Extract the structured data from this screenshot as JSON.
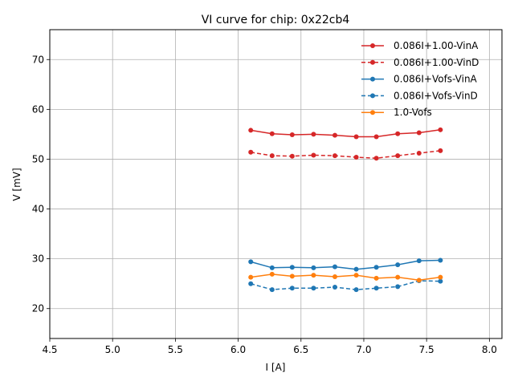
{
  "chart_data": {
    "type": "line",
    "title": "VI curve for chip: 0x22cb4",
    "xlabel": "I [A]",
    "ylabel": "V [mV]",
    "xlim": [
      4.5,
      8.1
    ],
    "ylim": [
      14,
      76
    ],
    "xticks": [
      "4.5",
      "5.0",
      "5.5",
      "6.0",
      "6.5",
      "7.0",
      "7.5",
      "8.0"
    ],
    "yticks": [
      "20",
      "30",
      "40",
      "50",
      "60",
      "70"
    ],
    "grid": true,
    "legend_position": "top-right",
    "x": [
      6.1,
      6.27,
      6.43,
      6.6,
      6.77,
      6.94,
      7.1,
      7.27,
      7.44,
      7.61
    ],
    "series": [
      {
        "name": "0.086I+1.00-VinA",
        "color": "#d62728",
        "style": "solid",
        "values": [
          55.8,
          55.1,
          54.9,
          55.0,
          54.8,
          54.5,
          54.5,
          55.1,
          55.3,
          55.9
        ]
      },
      {
        "name": "0.086I+1.00-VinD",
        "color": "#d62728",
        "style": "dashed",
        "values": [
          51.4,
          50.7,
          50.6,
          50.8,
          50.7,
          50.4,
          50.2,
          50.7,
          51.2,
          51.7
        ]
      },
      {
        "name": "0.086I+Vofs-VinA",
        "color": "#1f77b4",
        "style": "solid",
        "values": [
          29.4,
          28.2,
          28.3,
          28.2,
          28.4,
          27.9,
          28.3,
          28.8,
          29.6,
          29.7
        ]
      },
      {
        "name": "0.086I+Vofs-VinD",
        "color": "#1f77b4",
        "style": "dashed",
        "values": [
          25.0,
          23.8,
          24.1,
          24.1,
          24.3,
          23.8,
          24.1,
          24.4,
          25.6,
          25.5
        ]
      },
      {
        "name": "1.0-Vofs",
        "color": "#ff7f0e",
        "style": "solid",
        "values": [
          26.3,
          26.9,
          26.5,
          26.7,
          26.4,
          26.7,
          26.1,
          26.3,
          25.7,
          26.3
        ]
      }
    ]
  }
}
